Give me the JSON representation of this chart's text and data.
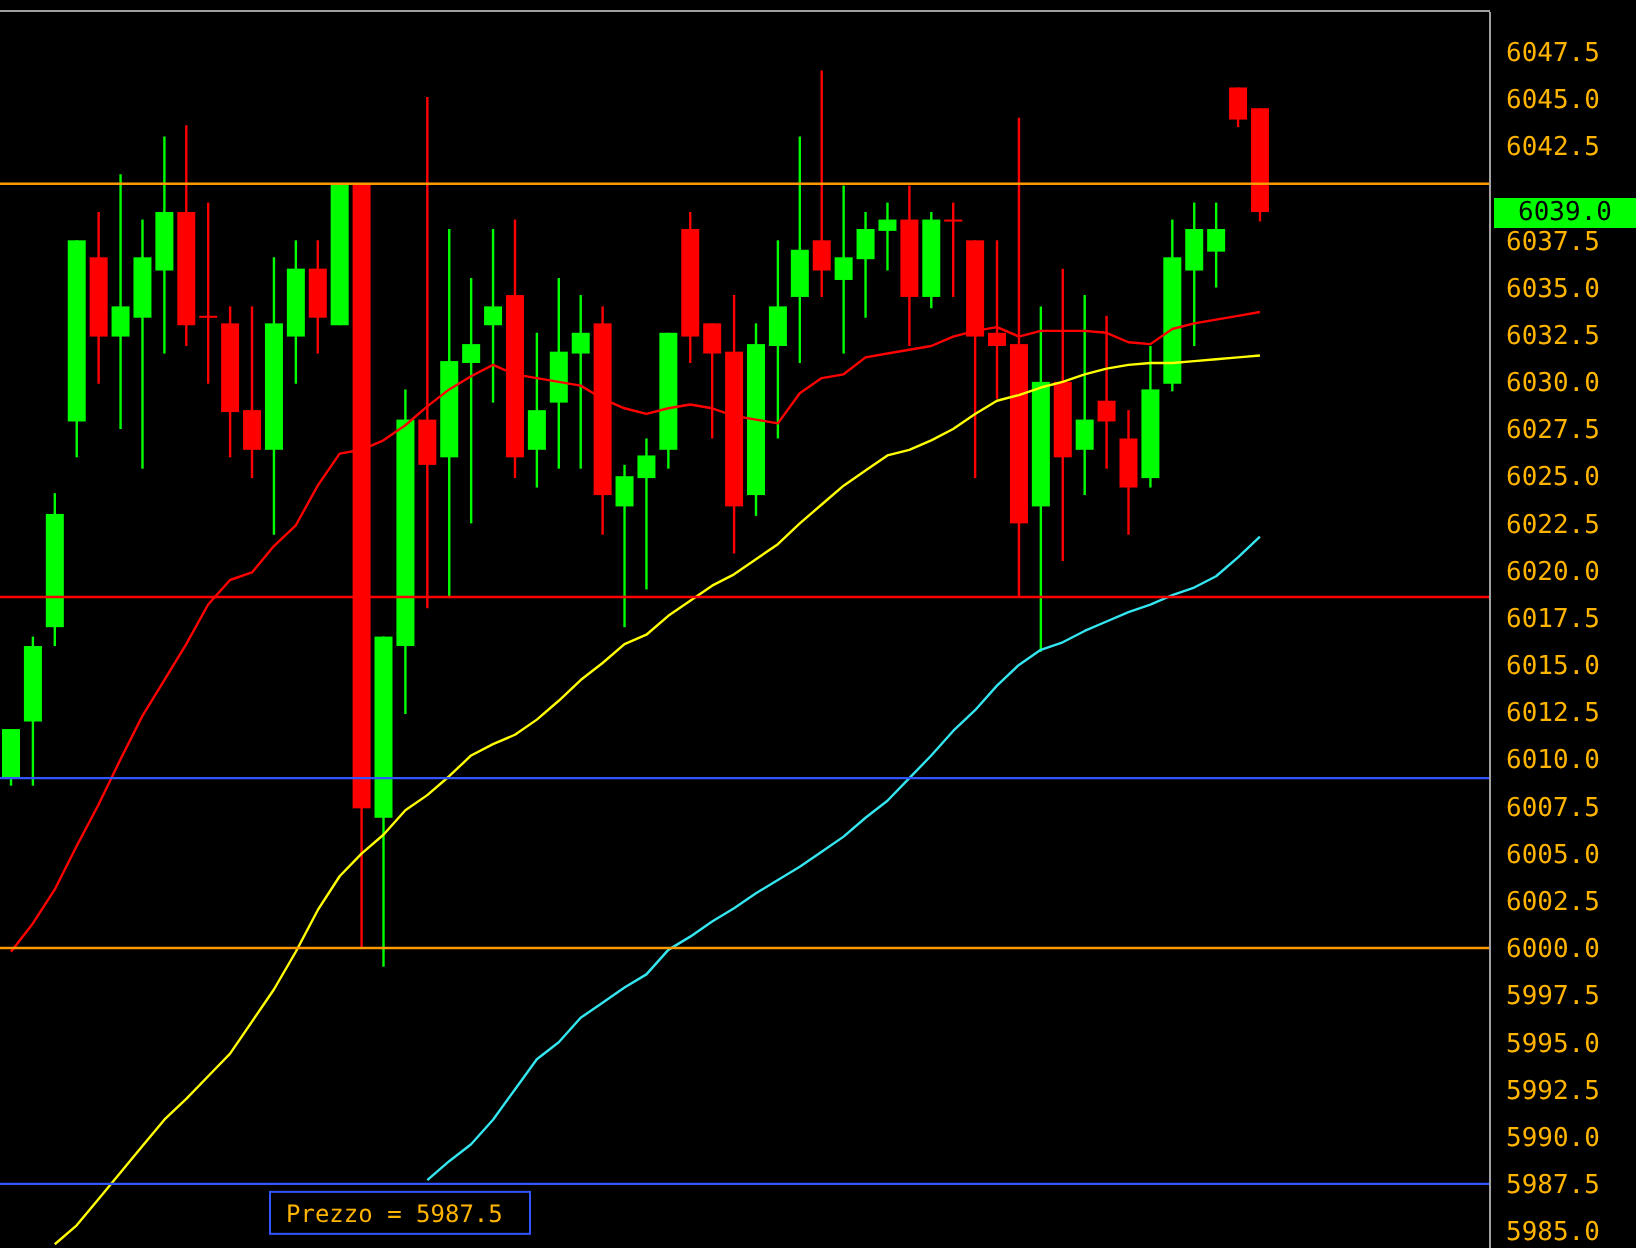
{
  "chart_data": {
    "type": "candlestick",
    "categories": [
      null,
      null,
      null,
      null,
      null,
      null,
      null,
      null,
      null,
      null,
      null,
      null,
      null,
      null,
      null,
      null,
      null,
      null,
      null,
      null,
      null,
      null,
      null,
      null,
      null,
      null,
      null,
      null,
      null,
      null,
      null,
      null,
      null,
      null,
      null,
      null,
      null,
      null,
      null,
      null,
      null,
      null,
      null,
      null,
      null,
      null,
      null,
      null,
      null,
      null,
      null,
      null,
      null,
      null,
      null,
      null,
      null,
      null,
      null,
      null,
      null,
      null,
      null,
      null,
      null,
      null,
      null,
      null
    ],
    "ohlc": [
      [
        6009.0,
        6011.6,
        6008.6,
        6011.6
      ],
      [
        6012.0,
        6016.5,
        6008.6,
        6016.0
      ],
      [
        6017.0,
        6024.1,
        6016.0,
        6023.0
      ],
      [
        6027.9,
        6037.5,
        6026.0,
        6037.5
      ],
      [
        6036.6,
        6039.0,
        6029.9,
        6032.4
      ],
      [
        6032.4,
        6041.0,
        6027.5,
        6034.0
      ],
      [
        6033.4,
        6038.6,
        6025.4,
        6036.6
      ],
      [
        6035.9,
        6043.0,
        6031.5,
        6039.0
      ],
      [
        6039.0,
        6043.6,
        6031.9,
        6033.0
      ],
      [
        6033.5,
        6039.5,
        6029.9,
        6033.5
      ],
      [
        6033.1,
        6034.0,
        6026.0,
        6028.4
      ],
      [
        6028.5,
        6034.0,
        6024.9,
        6026.4
      ],
      [
        6026.4,
        6036.6,
        6021.9,
        6033.1
      ],
      [
        6032.4,
        6037.5,
        6029.9,
        6036.0
      ],
      [
        6036.0,
        6037.5,
        6031.5,
        6033.4
      ],
      [
        6033.0,
        6040.5,
        6033.0,
        6040.5
      ],
      [
        6040.5,
        6040.5,
        6000.0,
        6007.4
      ],
      [
        6006.9,
        6016.5,
        5999.0,
        6016.5
      ],
      [
        6016.0,
        6029.6,
        6012.4,
        6028.0
      ],
      [
        6028.0,
        6045.1,
        6018.0,
        6025.6
      ],
      [
        6026.0,
        6038.1,
        6018.6,
        6031.1
      ],
      [
        6031.0,
        6035.5,
        6022.5,
        6032.0
      ],
      [
        6033.0,
        6038.1,
        6028.9,
        6034.0
      ],
      [
        6034.6,
        6038.6,
        6024.9,
        6026.0
      ],
      [
        6026.4,
        6032.6,
        6024.4,
        6028.5
      ],
      [
        6028.9,
        6035.5,
        6025.4,
        6031.6
      ],
      [
        6031.5,
        6034.6,
        6025.4,
        6032.6
      ],
      [
        6033.1,
        6034.0,
        6021.9,
        6024.0
      ],
      [
        6023.4,
        6025.6,
        6017.0,
        6025.0
      ],
      [
        6024.9,
        6027.0,
        6019.0,
        6026.1
      ],
      [
        6026.4,
        6032.6,
        6025.4,
        6032.6
      ],
      [
        6038.1,
        6039.0,
        6031.0,
        6032.4
      ],
      [
        6033.1,
        6033.1,
        6027.0,
        6031.5
      ],
      [
        6031.6,
        6034.6,
        6020.9,
        6023.4
      ],
      [
        6024.0,
        6033.1,
        6022.9,
        6032.0
      ],
      [
        6031.9,
        6037.5,
        6027.0,
        6034.0
      ],
      [
        6034.5,
        6043.0,
        6031.0,
        6037.0
      ],
      [
        6037.5,
        6046.5,
        6034.5,
        6035.9
      ],
      [
        6035.4,
        6040.4,
        6031.5,
        6036.6
      ],
      [
        6036.5,
        6039.0,
        6033.4,
        6038.1
      ],
      [
        6038.0,
        6039.5,
        6035.9,
        6038.6
      ],
      [
        6038.6,
        6040.4,
        6031.9,
        6034.5
      ],
      [
        6034.5,
        6039.0,
        6033.9,
        6038.6
      ],
      [
        6038.6,
        6039.5,
        6034.5,
        6038.6
      ],
      [
        6037.5,
        6037.5,
        6024.9,
        6032.4
      ],
      [
        6032.6,
        6037.5,
        6029.1,
        6031.9
      ],
      [
        6032.0,
        6044.0,
        6018.6,
        6022.5
      ],
      [
        6023.4,
        6034.0,
        6015.7,
        6030.0
      ],
      [
        6030.0,
        6036.0,
        6020.5,
        6026.0
      ],
      [
        6026.4,
        6034.6,
        6024.0,
        6028.0
      ],
      [
        6029.0,
        6033.5,
        6025.4,
        6027.9
      ],
      [
        6027.0,
        6028.5,
        6021.9,
        6024.4
      ],
      [
        6024.9,
        6031.9,
        6024.4,
        6029.6
      ],
      [
        6029.9,
        6038.6,
        6029.5,
        6036.6
      ],
      [
        6035.9,
        6039.5,
        6031.9,
        6038.1
      ],
      [
        6036.9,
        6039.5,
        6035.0,
        6038.1
      ],
      [
        6045.6,
        6045.6,
        6043.5,
        6043.9
      ],
      [
        6044.5,
        6044.5,
        6038.5,
        6039.0
      ],
      null,
      null,
      null,
      null,
      null,
      null,
      null,
      null,
      null,
      null
    ],
    "colors": [
      "#00ff00",
      "#00ff00",
      "#00ff00",
      "#00ff00",
      "#ff0000",
      "#00ff00",
      "#00ff00",
      "#00ff00",
      "#ff0000",
      "#ff0000",
      "#ff0000",
      "#ff0000",
      "#00ff00",
      "#00ff00",
      "#ff0000",
      "#00ff00",
      "#ff0000",
      "#00ff00",
      "#00ff00",
      "#ff0000",
      "#00ff00",
      "#00ff00",
      "#00ff00",
      "#ff0000",
      "#00ff00",
      "#00ff00",
      "#00ff00",
      "#ff0000",
      "#00ff00",
      "#00ff00",
      "#00ff00",
      "#ff0000",
      "#ff0000",
      "#ff0000",
      "#00ff00",
      "#00ff00",
      "#00ff00",
      "#ff0000",
      "#00ff00",
      "#00ff00",
      "#00ff00",
      "#ff0000",
      "#00ff00",
      "#ff0000",
      "#ff0000",
      "#ff0000",
      "#ff0000",
      "#00ff00",
      "#ff0000",
      "#00ff00",
      "#ff0000",
      "#ff0000",
      "#00ff00",
      "#00ff00",
      "#00ff00",
      "#00ff00",
      "#ff0000",
      "#ff0000",
      null,
      null,
      null,
      null,
      null,
      null,
      null,
      null,
      null,
      null
    ],
    "series": [
      {
        "type": "line",
        "color": "#ff0000",
        "values": [
          5999.8,
          6001.3,
          6003.1,
          6005.4,
          6007.6,
          6010.0,
          6012.3,
          6014.2,
          6016.1,
          6018.2,
          6019.5,
          6019.9,
          6021.3,
          6022.4,
          6024.5,
          6026.2,
          6026.4,
          6026.9,
          6027.7,
          6028.7,
          6029.6,
          6030.3,
          6030.9,
          6030.4,
          6030.2,
          6030.0,
          6029.8,
          6029.1,
          6028.6,
          6028.3,
          6028.6,
          6028.8,
          6028.6,
          6028.2,
          6028.0,
          6027.8,
          6029.4,
          6030.2,
          6030.4,
          6031.3,
          6031.5,
          6031.7,
          6031.9,
          6032.4,
          6032.7,
          6032.9,
          6032.4,
          6032.7,
          6032.7,
          6032.7,
          6032.6,
          6032.1,
          6032.0,
          6032.8,
          6033.1,
          6033.3,
          6033.5,
          6033.7,
          null,
          null,
          null,
          null,
          null,
          null,
          null,
          null,
          null,
          null
        ]
      },
      {
        "type": "line",
        "color": "#ffff00",
        "values": [
          null,
          null,
          5984.3,
          5985.3,
          5986.7,
          5988.1,
          5989.5,
          5990.9,
          5992.0,
          5993.2,
          5994.4,
          5996.1,
          5997.8,
          5999.8,
          6002.0,
          6003.8,
          6005.0,
          6006.0,
          6007.3,
          6008.1,
          6009.1,
          6010.2,
          6010.8,
          6011.3,
          6012.1,
          6013.1,
          6014.2,
          6015.1,
          6016.1,
          6016.6,
          6017.6,
          6018.4,
          6019.2,
          6019.8,
          6020.6,
          6021.4,
          6022.5,
          6023.5,
          6024.5,
          6025.3,
          6026.1,
          6026.4,
          6026.9,
          6027.5,
          6028.3,
          6029.0,
          6029.3,
          6029.7,
          6030.0,
          6030.4,
          6030.7,
          6030.9,
          6031.0,
          6031.0,
          6031.1,
          6031.2,
          6031.3,
          6031.4,
          null,
          null,
          null,
          null,
          null,
          null,
          null,
          null,
          null,
          null
        ]
      },
      {
        "type": "line",
        "color": "#33e6f0",
        "values": [
          null,
          null,
          null,
          null,
          null,
          null,
          null,
          null,
          null,
          null,
          null,
          null,
          null,
          null,
          null,
          null,
          null,
          null,
          null,
          5987.7,
          5988.7,
          5989.6,
          5990.9,
          5992.5,
          5994.1,
          5995.0,
          5996.3,
          5997.1,
          5997.9,
          5998.6,
          5999.9,
          6000.6,
          6001.4,
          6002.1,
          6002.9,
          6003.6,
          6004.3,
          6005.1,
          6005.9,
          6006.9,
          6007.8,
          6009.0,
          6010.2,
          6011.5,
          6012.6,
          6013.9,
          6015.0,
          6015.8,
          6016.2,
          6016.8,
          6017.3,
          6017.8,
          6018.2,
          6018.7,
          6019.1,
          6019.7,
          6020.7,
          6021.8,
          null,
          null,
          null,
          null,
          null,
          null,
          null,
          null,
          null,
          null
        ]
      }
    ],
    "ylim": [
      5984.1,
      6049.6
    ],
    "yticks": [
      {
        "value": 5985,
        "label": "5985.0"
      },
      5987.5,
      {
        "value": 5990,
        "label": "5990.0"
      },
      5992.5,
      {
        "value": 5995,
        "label": "5995.0"
      },
      5997.5,
      {
        "value": 6000,
        "label": "6000.0"
      },
      6002.5,
      {
        "value": 6005,
        "label": "6005.0"
      },
      6007.5,
      {
        "value": 6010,
        "label": "6010.0"
      },
      6012.5,
      {
        "value": 6015,
        "label": "6015.0"
      },
      6017.5,
      {
        "value": 6020,
        "label": "6020.0"
      },
      6022.5,
      {
        "value": 6025,
        "label": "6025.0"
      },
      6027.5,
      {
        "value": 6030,
        "label": "6030.0"
      },
      6032.5,
      {
        "value": 6035,
        "label": "6035.0"
      },
      6037.5,
      6042.5,
      {
        "value": 6045,
        "label": "6045.0"
      },
      6047.5
    ],
    "tick_labels": "y",
    "ref_lines": [
      {
        "axis": "y",
        "value": 6040.5,
        "color": "#ff9900"
      },
      {
        "axis": "y",
        "value": 6000.0,
        "color": "#ff9900"
      },
      {
        "axis": "y",
        "value": 6018.6,
        "color": "#ff0000"
      },
      {
        "axis": "y",
        "value": 6009.0,
        "color": "#3355ff"
      },
      {
        "axis": "y",
        "value": 5987.5,
        "color": "#3355ff",
        "label": "Prezzo = 5987.5"
      }
    ],
    "annotations": [
      "6039.0"
    ]
  }
}
